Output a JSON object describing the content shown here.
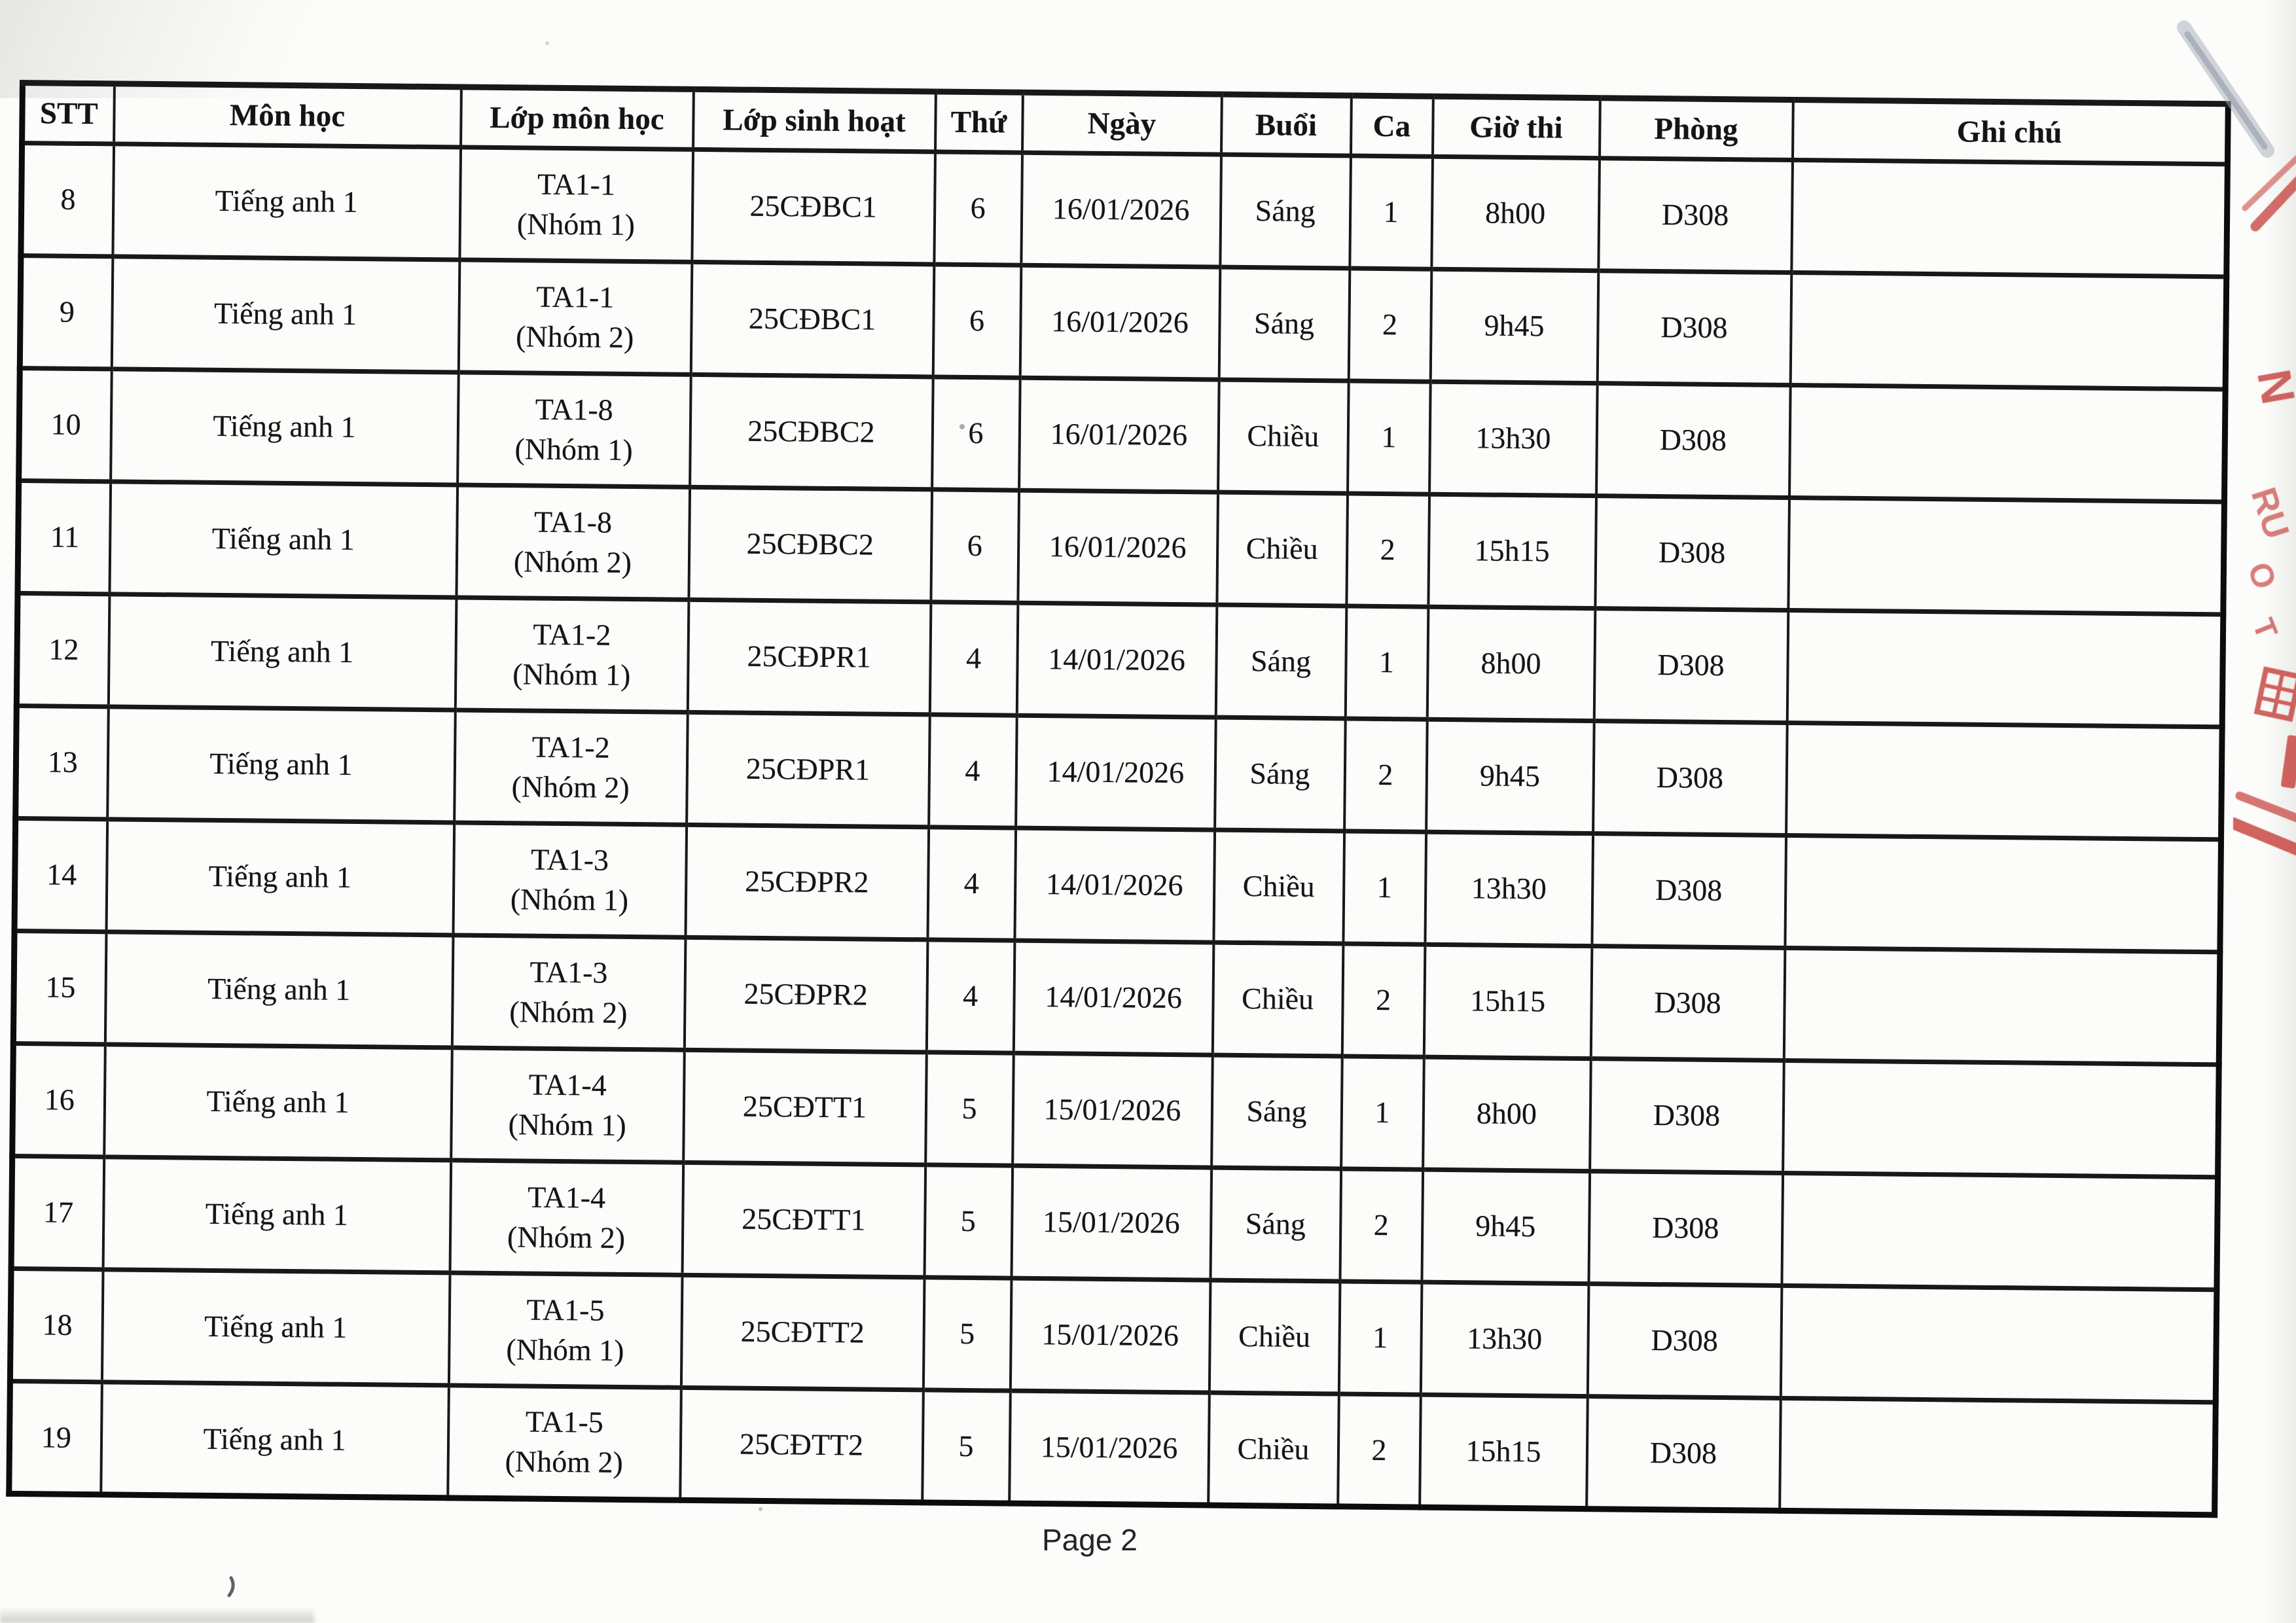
{
  "footer": {
    "page_label": "Page 2"
  },
  "colors": {
    "paper": "#fcfcfa",
    "ink": "#141414",
    "table_border": "#0c0c0c",
    "stamp_red": "#c43a35",
    "pencil_gray": "#9aa2ae"
  },
  "table": {
    "columns": [
      {
        "key": "stt",
        "label": "STT"
      },
      {
        "key": "mon_hoc",
        "label": "Môn học"
      },
      {
        "key": "lop_mon_hoc",
        "label": "Lớp môn học"
      },
      {
        "key": "lop_sinh_hoat",
        "label": "Lớp sinh hoạt"
      },
      {
        "key": "thu",
        "label": "Thứ"
      },
      {
        "key": "ngay",
        "label": "Ngày"
      },
      {
        "key": "buoi",
        "label": "Buổi"
      },
      {
        "key": "ca",
        "label": "Ca"
      },
      {
        "key": "gio_thi",
        "label": "Giờ thi"
      },
      {
        "key": "phong",
        "label": "Phòng"
      },
      {
        "key": "ghi_chu",
        "label": "Ghi chú"
      }
    ],
    "rows": [
      {
        "stt": "8",
        "mon_hoc": "Tiếng anh 1",
        "lop_mon_hoc": "TA1-1\n(Nhóm 1)",
        "lop_sinh_hoat": "25CĐBC1",
        "thu": "6",
        "ngay": "16/01/2026",
        "buoi": "Sáng",
        "ca": "1",
        "gio_thi": "8h00",
        "phong": "D308",
        "ghi_chu": ""
      },
      {
        "stt": "9",
        "mon_hoc": "Tiếng anh 1",
        "lop_mon_hoc": "TA1-1\n(Nhóm 2)",
        "lop_sinh_hoat": "25CĐBC1",
        "thu": "6",
        "ngay": "16/01/2026",
        "buoi": "Sáng",
        "ca": "2",
        "gio_thi": "9h45",
        "phong": "D308",
        "ghi_chu": ""
      },
      {
        "stt": "10",
        "mon_hoc": "Tiếng anh 1",
        "lop_mon_hoc": "TA1-8\n(Nhóm 1)",
        "lop_sinh_hoat": "25CĐBC2",
        "thu": "6",
        "ngay": "16/01/2026",
        "buoi": "Chiều",
        "ca": "1",
        "gio_thi": "13h30",
        "phong": "D308",
        "ghi_chu": ""
      },
      {
        "stt": "11",
        "mon_hoc": "Tiếng anh 1",
        "lop_mon_hoc": "TA1-8\n(Nhóm 2)",
        "lop_sinh_hoat": "25CĐBC2",
        "thu": "6",
        "ngay": "16/01/2026",
        "buoi": "Chiều",
        "ca": "2",
        "gio_thi": "15h15",
        "phong": "D308",
        "ghi_chu": ""
      },
      {
        "stt": "12",
        "mon_hoc": "Tiếng anh 1",
        "lop_mon_hoc": "TA1-2\n(Nhóm 1)",
        "lop_sinh_hoat": "25CĐPR1",
        "thu": "4",
        "ngay": "14/01/2026",
        "buoi": "Sáng",
        "ca": "1",
        "gio_thi": "8h00",
        "phong": "D308",
        "ghi_chu": ""
      },
      {
        "stt": "13",
        "mon_hoc": "Tiếng anh 1",
        "lop_mon_hoc": "TA1-2\n(Nhóm 2)",
        "lop_sinh_hoat": "25CĐPR1",
        "thu": "4",
        "ngay": "14/01/2026",
        "buoi": "Sáng",
        "ca": "2",
        "gio_thi": "9h45",
        "phong": "D308",
        "ghi_chu": ""
      },
      {
        "stt": "14",
        "mon_hoc": "Tiếng anh 1",
        "lop_mon_hoc": "TA1-3\n(Nhóm 1)",
        "lop_sinh_hoat": "25CĐPR2",
        "thu": "4",
        "ngay": "14/01/2026",
        "buoi": "Chiều",
        "ca": "1",
        "gio_thi": "13h30",
        "phong": "D308",
        "ghi_chu": ""
      },
      {
        "stt": "15",
        "mon_hoc": "Tiếng anh 1",
        "lop_mon_hoc": "TA1-3\n(Nhóm 2)",
        "lop_sinh_hoat": "25CĐPR2",
        "thu": "4",
        "ngay": "14/01/2026",
        "buoi": "Chiều",
        "ca": "2",
        "gio_thi": "15h15",
        "phong": "D308",
        "ghi_chu": ""
      },
      {
        "stt": "16",
        "mon_hoc": "Tiếng anh 1",
        "lop_mon_hoc": "TA1-4\n(Nhóm 1)",
        "lop_sinh_hoat": "25CĐTT1",
        "thu": "5",
        "ngay": "15/01/2026",
        "buoi": "Sáng",
        "ca": "1",
        "gio_thi": "8h00",
        "phong": "D308",
        "ghi_chu": ""
      },
      {
        "stt": "17",
        "mon_hoc": "Tiếng anh 1",
        "lop_mon_hoc": "TA1-4\n(Nhóm 2)",
        "lop_sinh_hoat": "25CĐTT1",
        "thu": "5",
        "ngay": "15/01/2026",
        "buoi": "Sáng",
        "ca": "2",
        "gio_thi": "9h45",
        "phong": "D308",
        "ghi_chu": ""
      },
      {
        "stt": "18",
        "mon_hoc": "Tiếng anh 1",
        "lop_mon_hoc": "TA1-5\n(Nhóm 1)",
        "lop_sinh_hoat": "25CĐTT2",
        "thu": "5",
        "ngay": "15/01/2026",
        "buoi": "Chiều",
        "ca": "1",
        "gio_thi": "13h30",
        "phong": "D308",
        "ghi_chu": ""
      },
      {
        "stt": "19",
        "mon_hoc": "Tiếng anh 1",
        "lop_mon_hoc": "TA1-5\n(Nhóm 2)",
        "lop_sinh_hoat": "25CĐTT2",
        "thu": "5",
        "ngay": "15/01/2026",
        "buoi": "Chiều",
        "ca": "2",
        "gio_thi": "15h15",
        "phong": "D308",
        "ghi_chu": ""
      }
    ]
  },
  "stamp": {
    "letters": {
      "l1": "N",
      "l2": "RU",
      "l3": "O",
      "l4": "T"
    }
  }
}
